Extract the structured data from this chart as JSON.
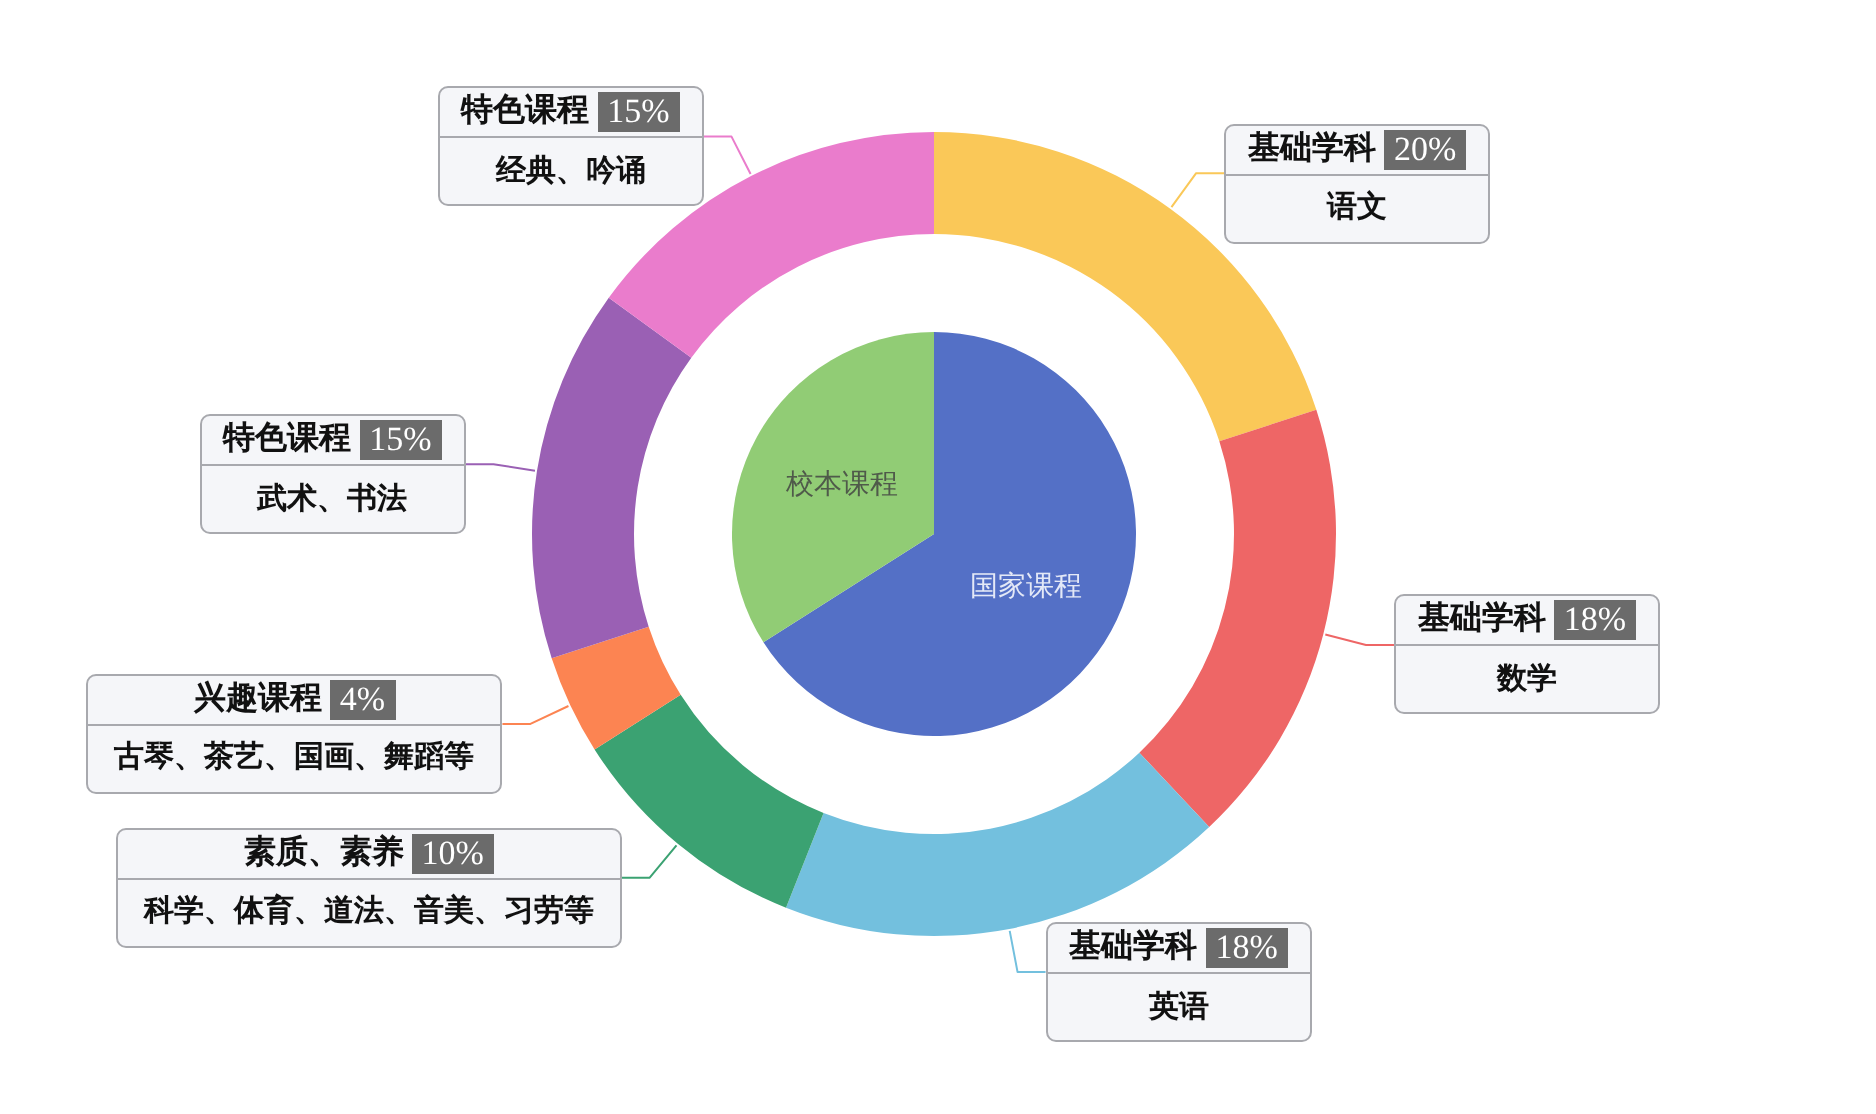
{
  "chart_data": [
    {
      "type": "pie",
      "categories": [
        "国家课程",
        "校本课程"
      ],
      "values": [
        66,
        34
      ],
      "colors": [
        "#5470c6",
        "#91cc75"
      ]
    },
    {
      "type": "donut",
      "categories": [
        "语文",
        "数学",
        "英语",
        "科学、体育、道法、音美、习劳等",
        "古琴、茶艺、国画、舞蹈等",
        "武术、书法",
        "经典、吟诵"
      ],
      "values": [
        20,
        18,
        18,
        10,
        4,
        15,
        15
      ],
      "colors": [
        "#fac858",
        "#ee6666",
        "#73c0de",
        "#3ba272",
        "#fc8452",
        "#9a60b4",
        "#ea7ccc"
      ],
      "value_labels": [
        "20%",
        "18%",
        "18%",
        "10%",
        "4%",
        "15%",
        "15%"
      ],
      "annotations": [
        "基础学科",
        "基础学科",
        "基础学科",
        "素质、素养",
        "兴趣课程",
        "特色课程",
        "特色课程"
      ]
    }
  ]
}
